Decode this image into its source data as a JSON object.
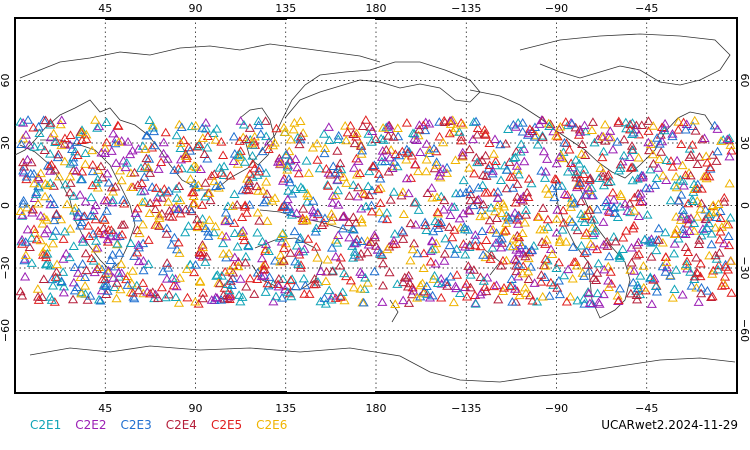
{
  "map": {
    "top_lon_labels": [
      "45",
      "90",
      "135",
      "180",
      "−135",
      "−90",
      "−45"
    ],
    "bottom_lon_labels": [
      "45",
      "90",
      "135",
      "180",
      "−135",
      "−90",
      "−45"
    ],
    "lat_labels": [
      "60",
      "30",
      "0",
      "−30",
      "−60"
    ],
    "lon_values": [
      45,
      90,
      135,
      180,
      -135,
      -90,
      -45
    ],
    "lat_values": [
      60,
      30,
      0,
      -30,
      -60
    ],
    "lon_range": [
      0,
      360
    ],
    "lat_range": [
      -90,
      90
    ],
    "grid": true
  },
  "legend": {
    "items": [
      {
        "label": "C2E1",
        "color": "#10a4b7"
      },
      {
        "label": "C2E2",
        "color": "#9b1fb5"
      },
      {
        "label": "C2E3",
        "color": "#1f6fd0"
      },
      {
        "label": "C2E4",
        "color": "#b51f3a"
      },
      {
        "label": "C2E5",
        "color": "#e01f1f"
      },
      {
        "label": "C2E6",
        "color": "#f0b400"
      }
    ]
  },
  "stamp": "UCARwet2.2024-11-29"
}
